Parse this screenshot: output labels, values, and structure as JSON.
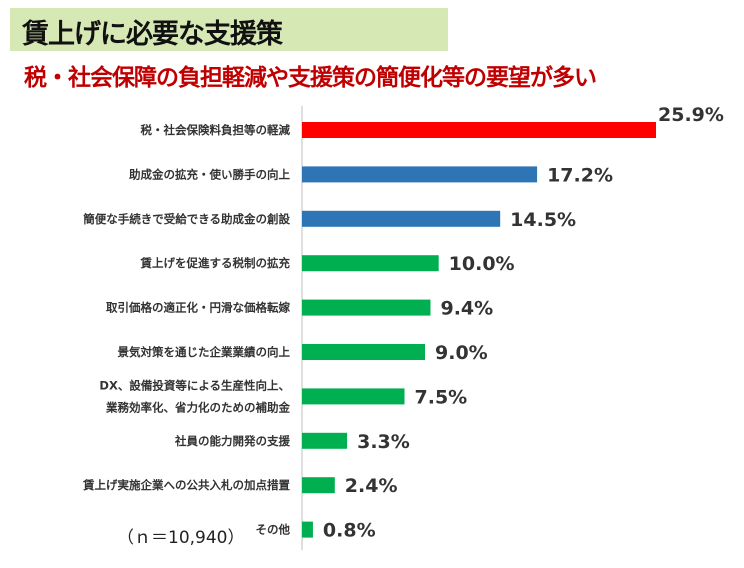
{
  "header": {
    "title": "賃上げに必要な支援策",
    "subtitle": "税・社会保障の負担軽減や支援策の簡便化等の要望が多い"
  },
  "note": "（ｎ＝10,940）",
  "colors": {
    "title_band": "#d6e9b4",
    "subtitle": "#c00000",
    "red": "#ff0000",
    "blue": "#2e75b6",
    "green": "#00b050"
  },
  "chart_data": {
    "type": "bar",
    "orientation": "horizontal",
    "categories": [
      [
        "税・社会保険料負担等の軽減"
      ],
      [
        "助成金の拡充・使い勝手の向上"
      ],
      [
        "簡便な手続きで受給できる助成金の創設"
      ],
      [
        "賃上げを促進する税制の拡充"
      ],
      [
        "取引価格の適正化・円滑な価格転嫁"
      ],
      [
        "景気対策を通じた企業業績の向上"
      ],
      [
        "DX、設備投資等による生産性向上、",
        "業務効率化、省力化のための補助金"
      ],
      [
        "社員の能力開発の支援"
      ],
      [
        "賃上げ実施企業への公共入札の加点措置"
      ],
      [
        "その他"
      ]
    ],
    "values": [
      25.9,
      17.2,
      14.5,
      10.0,
      9.4,
      9.0,
      7.5,
      3.3,
      2.4,
      0.8
    ],
    "labels": [
      "25.9%",
      "17.2%",
      "14.5%",
      "10.0%",
      "9.4%",
      "9.0%",
      "7.5%",
      "3.3%",
      "2.4%",
      "0.8%"
    ],
    "bar_colors": [
      "#ff0000",
      "#2e75b6",
      "#2e75b6",
      "#00b050",
      "#00b050",
      "#00b050",
      "#00b050",
      "#00b050",
      "#00b050",
      "#00b050"
    ],
    "xlim": [
      0,
      25.9
    ],
    "grid": false
  }
}
